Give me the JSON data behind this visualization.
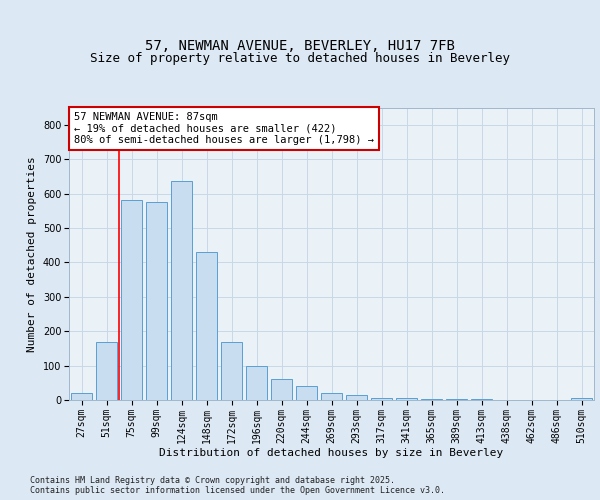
{
  "title_line1": "57, NEWMAN AVENUE, BEVERLEY, HU17 7FB",
  "title_line2": "Size of property relative to detached houses in Beverley",
  "xlabel": "Distribution of detached houses by size in Beverley",
  "ylabel": "Number of detached properties",
  "categories": [
    "27sqm",
    "51sqm",
    "75sqm",
    "99sqm",
    "124sqm",
    "148sqm",
    "172sqm",
    "196sqm",
    "220sqm",
    "244sqm",
    "269sqm",
    "293sqm",
    "317sqm",
    "341sqm",
    "365sqm",
    "389sqm",
    "413sqm",
    "438sqm",
    "462sqm",
    "486sqm",
    "510sqm"
  ],
  "values": [
    20,
    170,
    580,
    575,
    635,
    430,
    170,
    100,
    60,
    40,
    20,
    15,
    5,
    5,
    3,
    2,
    2,
    1,
    1,
    1,
    5
  ],
  "bar_color": "#c8ddf0",
  "bar_edge_color": "#5a9fd4",
  "red_line_x": 1.5,
  "annotation_text": "57 NEWMAN AVENUE: 87sqm\n← 19% of detached houses are smaller (422)\n80% of semi-detached houses are larger (1,798) →",
  "annotation_box_color": "#ffffff",
  "annotation_box_edge": "#cc0000",
  "ylim": [
    0,
    850
  ],
  "yticks": [
    0,
    100,
    200,
    300,
    400,
    500,
    600,
    700,
    800
  ],
  "grid_color": "#c8d8e8",
  "background_color": "#dce8f4",
  "plot_bg_color": "#eaf2f8",
  "footer_text": "Contains HM Land Registry data © Crown copyright and database right 2025.\nContains public sector information licensed under the Open Government Licence v3.0.",
  "title_fontsize": 10,
  "subtitle_fontsize": 9,
  "label_fontsize": 8,
  "tick_fontsize": 7,
  "annotation_fontsize": 7.5,
  "footer_fontsize": 6
}
